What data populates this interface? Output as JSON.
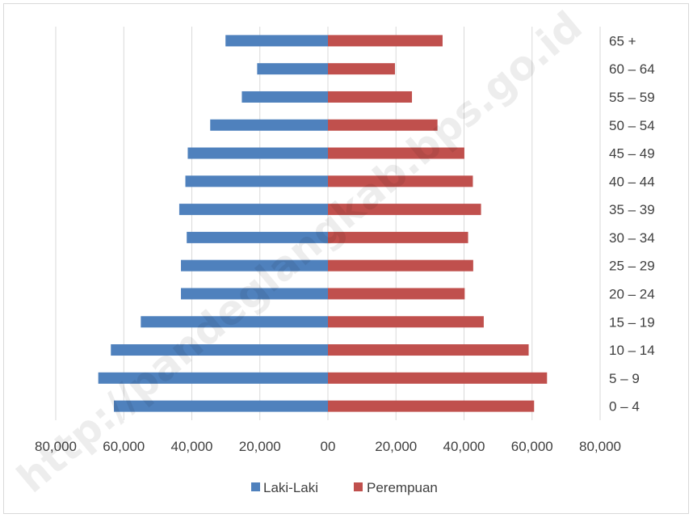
{
  "chart_data": {
    "type": "bar",
    "orientation": "horizontal",
    "layout": "population-pyramid",
    "title": "",
    "xlabel": "",
    "ylabel": "",
    "categories": [
      "0 – 4",
      "5 – 9",
      "10 – 14",
      "15 – 19",
      "20 – 24",
      "25 – 29",
      "30 – 34",
      "35 – 39",
      "40 – 44",
      "45 – 49",
      "50 – 54",
      "55 – 59",
      "60 – 64",
      "65 +"
    ],
    "series": [
      {
        "name": "Laki-Laki",
        "color": "#4f81bd",
        "side": "left",
        "values": [
          62900,
          67500,
          63800,
          55000,
          43200,
          43200,
          41500,
          43700,
          41900,
          41200,
          34600,
          25300,
          20800,
          30100
        ]
      },
      {
        "name": "Perempuan",
        "color": "#c0504d",
        "side": "right",
        "values": [
          60600,
          64400,
          59000,
          45800,
          40200,
          42700,
          41200,
          45000,
          42600,
          40100,
          32200,
          24700,
          19700,
          33700
        ]
      }
    ],
    "xlim": [
      -80000,
      80000
    ],
    "xticks": [
      -80000,
      -60000,
      -40000,
      -20000,
      0,
      20000,
      40000,
      60000,
      80000
    ],
    "xtick_labels": [
      "80,000",
      "60,000",
      "40,000",
      "20,000",
      "00",
      "20,000",
      "40,000",
      "60,000",
      "80,000"
    ],
    "grid": true,
    "legend_position": "bottom",
    "category_axis_position": "right"
  },
  "watermark": "http://pandeglangkab.bps.go.id"
}
